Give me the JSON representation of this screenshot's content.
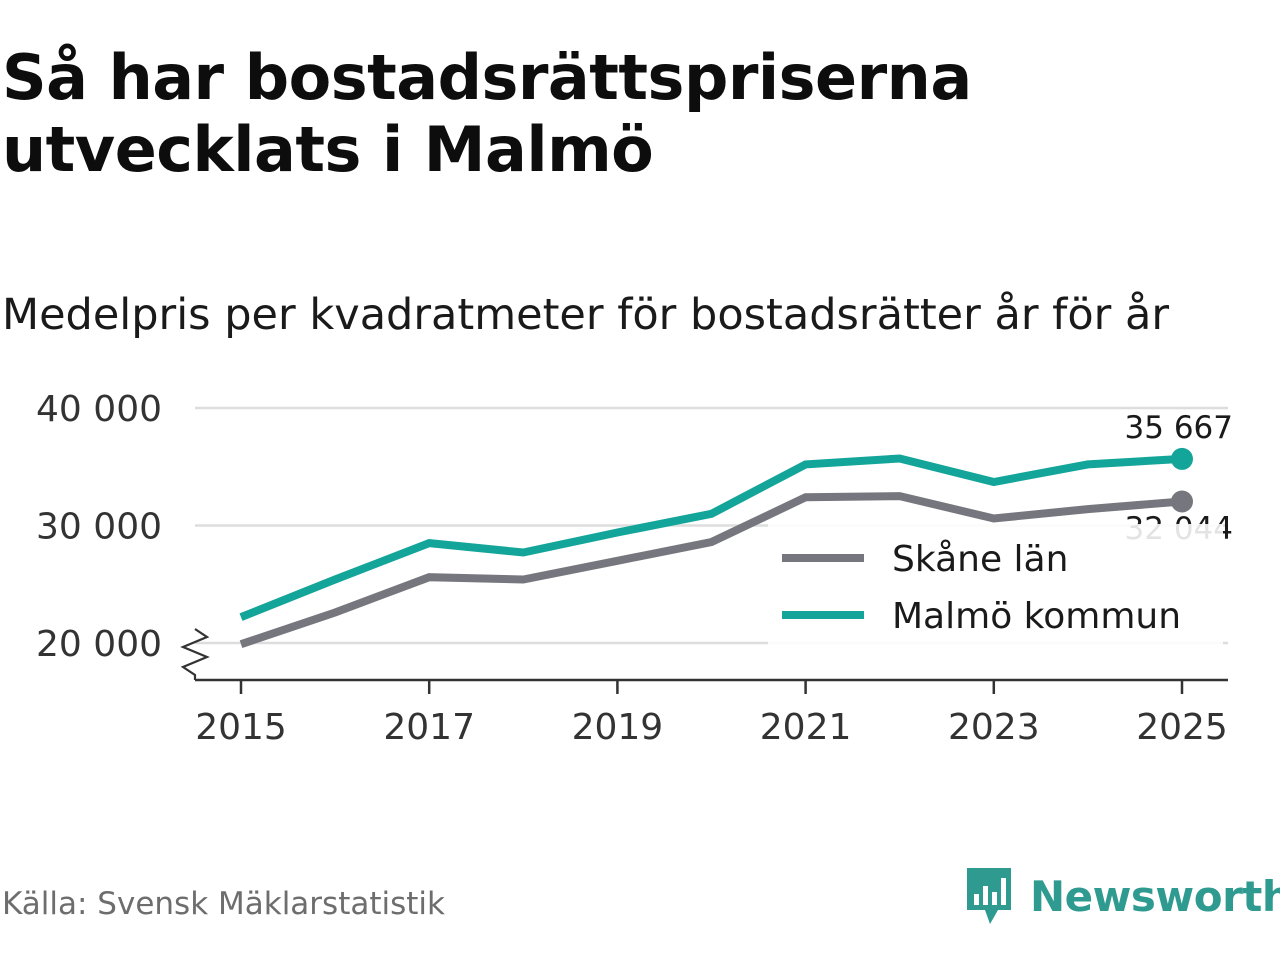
{
  "header": {
    "title": "Så har bostadsrättspriserna utvecklats i Malmö",
    "subtitle": "Medelpris per kvadratmeter för bostadsrätter år för år"
  },
  "footer": {
    "source": "Källa: Svensk Mäklarstatistik",
    "brand": "Newsworthy"
  },
  "colors": {
    "skane": "#76767e",
    "malmo": "#14a59a",
    "grid": "#dddddd",
    "axis": "#333333",
    "brand": "#2f9a8f"
  },
  "chart_data": {
    "type": "line",
    "title": "Medelpris per kvadratmeter för bostadsrätter år för år",
    "x": [
      2015,
      2016,
      2017,
      2018,
      2019,
      2020,
      2021,
      2022,
      2023,
      2024,
      2025
    ],
    "x_ticks": [
      2015,
      2017,
      2019,
      2021,
      2023,
      2025
    ],
    "x_tick_labels": [
      "2015",
      "2017",
      "2019",
      "2021",
      "2023",
      "2025"
    ],
    "xlim": [
      2015,
      2025
    ],
    "y_ticks": [
      20000,
      30000,
      40000
    ],
    "y_tick_labels": [
      "20 000",
      "30 000",
      "40 000"
    ],
    "ylim": [
      20000,
      40000
    ],
    "axis_break": true,
    "grid": true,
    "legend_position": "bottom-right",
    "series": [
      {
        "name": "Skåne län",
        "color_key": "skane",
        "values": [
          19900,
          22600,
          25600,
          25400,
          27000,
          28600,
          32400,
          32500,
          30600,
          31400,
          32044
        ],
        "end_label": "32 044"
      },
      {
        "name": "Malmö kommun",
        "color_key": "malmo",
        "values": [
          22200,
          25400,
          28500,
          27700,
          29400,
          31000,
          35200,
          35700,
          33700,
          35200,
          35667
        ],
        "end_label": "35 667"
      }
    ]
  }
}
